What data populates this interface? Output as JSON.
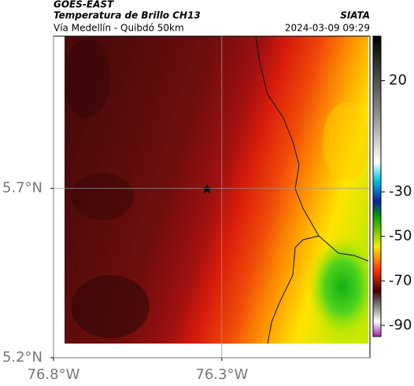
{
  "header": {
    "title": "GOES-EAST",
    "subtitle": "Temperatura de Brillo CH13",
    "source": "SIATA",
    "route": "Vía Medellín - Quibdó 50km",
    "timestamp": "2024-03-09 09:29"
  },
  "map": {
    "xlim": [
      -76.8,
      -75.86
    ],
    "ylim": [
      5.2,
      6.15
    ],
    "xticks": [
      {
        "value": -76.8,
        "label": "76.8°W"
      },
      {
        "value": -76.3,
        "label": "76.3°W"
      }
    ],
    "yticks": [
      {
        "value": 5.2,
        "label": "5.2°N"
      },
      {
        "value": 5.7,
        "label": "5.7°N"
      }
    ],
    "grid": true
  },
  "colorbar": {
    "lim": [
      -95,
      40
    ],
    "ticks": [
      20,
      -30,
      -50,
      -70,
      -90
    ]
  }
}
